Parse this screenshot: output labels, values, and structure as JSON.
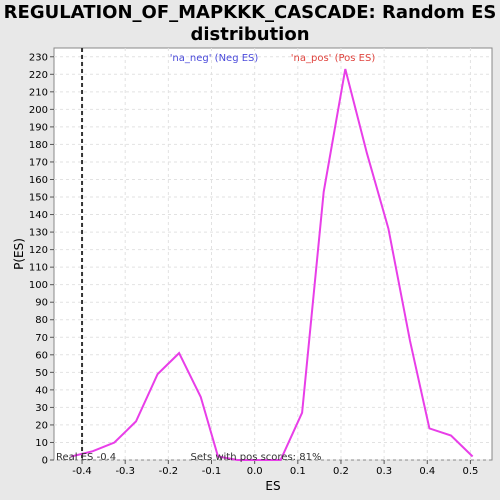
{
  "chart_data": {
    "type": "line",
    "title_line1": "REGULATION_OF_MAPKKK_CASCADE: Random ES",
    "title_line2": "distribution",
    "xlabel": "ES",
    "ylabel": "P(ES)",
    "xlim": [
      -0.465,
      0.55
    ],
    "ylim": [
      0,
      235
    ],
    "x_ticks": [
      -0.4,
      -0.3,
      -0.2,
      -0.1,
      0.0,
      0.1,
      0.2,
      0.3,
      0.4,
      0.5
    ],
    "x_tick_labels": [
      "-0.4",
      "-0.3",
      "-0.2",
      "-0.1",
      "0.0",
      "0.1",
      "0.2",
      "0.3",
      "0.4",
      "0.5"
    ],
    "y_ticks": [
      0,
      10,
      20,
      30,
      40,
      50,
      60,
      70,
      80,
      90,
      100,
      110,
      120,
      130,
      140,
      150,
      160,
      170,
      180,
      190,
      200,
      210,
      220,
      230
    ],
    "grid": true,
    "series": [
      {
        "color": "#e83ee8",
        "x": [
          -0.425,
          -0.375,
          -0.325,
          -0.275,
          -0.225,
          -0.175,
          -0.125,
          -0.085,
          -0.04,
          0.0,
          0.06,
          0.11,
          0.16,
          0.21,
          0.26,
          0.31,
          0.36,
          0.405,
          0.455,
          0.505
        ],
        "y": [
          2,
          5,
          10,
          22,
          49,
          61,
          36,
          2,
          0,
          0,
          0,
          27,
          153,
          223,
          175,
          132,
          68,
          18,
          14,
          2
        ]
      }
    ],
    "real_es_line": {
      "x": -0.4,
      "label": "Real ES -0.4"
    },
    "legend": {
      "neg_label": "'na_neg' (Neg ES)",
      "pos_label": "'na_pos' (Pos ES)",
      "neg_color": "#4a4adb",
      "pos_color": "#e0443e"
    },
    "annotation": "Sets with pos scores: 81%"
  }
}
